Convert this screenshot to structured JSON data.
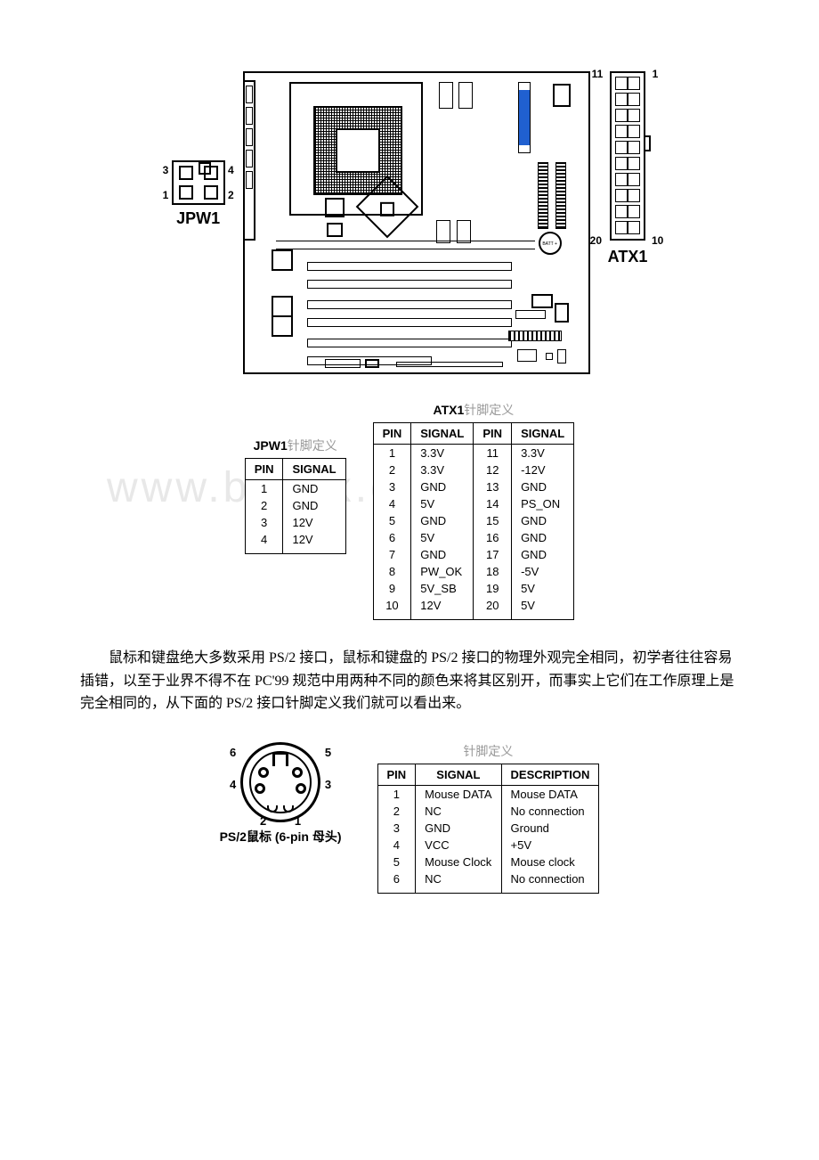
{
  "jpw1": {
    "name": "JPW1",
    "labels": {
      "p3": "3",
      "p4": "4",
      "p1": "1",
      "p2": "2"
    },
    "caption_bold": "JPW1",
    "caption_zh": "针脚定义",
    "headers": {
      "pin": "PIN",
      "signal": "SIGNAL"
    },
    "rows": [
      {
        "pin": "1",
        "signal": "GND"
      },
      {
        "pin": "2",
        "signal": "GND"
      },
      {
        "pin": "3",
        "signal": "12V"
      },
      {
        "pin": "4",
        "signal": "12V"
      }
    ]
  },
  "atx1": {
    "name": "ATX1",
    "labels": {
      "p11": "11",
      "p1": "1",
      "p20": "20",
      "p10": "10"
    },
    "caption_bold": "ATX1",
    "caption_zh": "针脚定义",
    "headers": {
      "pin": "PIN",
      "signal": "SIGNAL"
    },
    "rows_left": [
      {
        "pin": "1",
        "signal": "3.3V"
      },
      {
        "pin": "2",
        "signal": "3.3V"
      },
      {
        "pin": "3",
        "signal": "GND"
      },
      {
        "pin": "4",
        "signal": "5V"
      },
      {
        "pin": "5",
        "signal": "GND"
      },
      {
        "pin": "6",
        "signal": "5V"
      },
      {
        "pin": "7",
        "signal": "GND"
      },
      {
        "pin": "8",
        "signal": "PW_OK"
      },
      {
        "pin": "9",
        "signal": "5V_SB"
      },
      {
        "pin": "10",
        "signal": "12V"
      }
    ],
    "rows_right": [
      {
        "pin": "11",
        "signal": "3.3V"
      },
      {
        "pin": "12",
        "signal": "-12V"
      },
      {
        "pin": "13",
        "signal": "GND"
      },
      {
        "pin": "14",
        "signal": "PS_ON"
      },
      {
        "pin": "15",
        "signal": "GND"
      },
      {
        "pin": "16",
        "signal": "GND"
      },
      {
        "pin": "17",
        "signal": "GND"
      },
      {
        "pin": "18",
        "signal": "-5V"
      },
      {
        "pin": "19",
        "signal": "5V"
      },
      {
        "pin": "20",
        "signal": "5V"
      }
    ]
  },
  "paragraph": "鼠标和键盘绝大多数采用 PS/2 接口，鼠标和键盘的 PS/2 接口的物理外观完全相同，初学者往往容易插错，以至于业界不得不在 PC'99 规范中用两种不同的颜色来将其区别开，而事实上它们在工作原理上是完全相同的，从下面的 PS/2 接口针脚定义我们就可以看出来。",
  "watermark": "www.bdocx.com",
  "ps2": {
    "caption": "PS/2鼠标 (6-pin 母头)",
    "pin_labels": {
      "p1": "1",
      "p2": "2",
      "p3": "3",
      "p4": "4",
      "p5": "5",
      "p6": "6"
    },
    "header_small": "针脚定义",
    "headers": {
      "pin": "PIN",
      "signal": "SIGNAL",
      "desc": "DESCRIPTION"
    },
    "rows": [
      {
        "pin": "1",
        "signal": "Mouse DATA",
        "desc": "Mouse DATA"
      },
      {
        "pin": "2",
        "signal": "NC",
        "desc": "No connection"
      },
      {
        "pin": "3",
        "signal": "GND",
        "desc": "Ground"
      },
      {
        "pin": "4",
        "signal": "VCC",
        "desc": "+5V"
      },
      {
        "pin": "5",
        "signal": "Mouse Clock",
        "desc": "Mouse clock"
      },
      {
        "pin": "6",
        "signal": "NC",
        "desc": "No connection"
      }
    ]
  },
  "batt_label": "BATT\n+"
}
